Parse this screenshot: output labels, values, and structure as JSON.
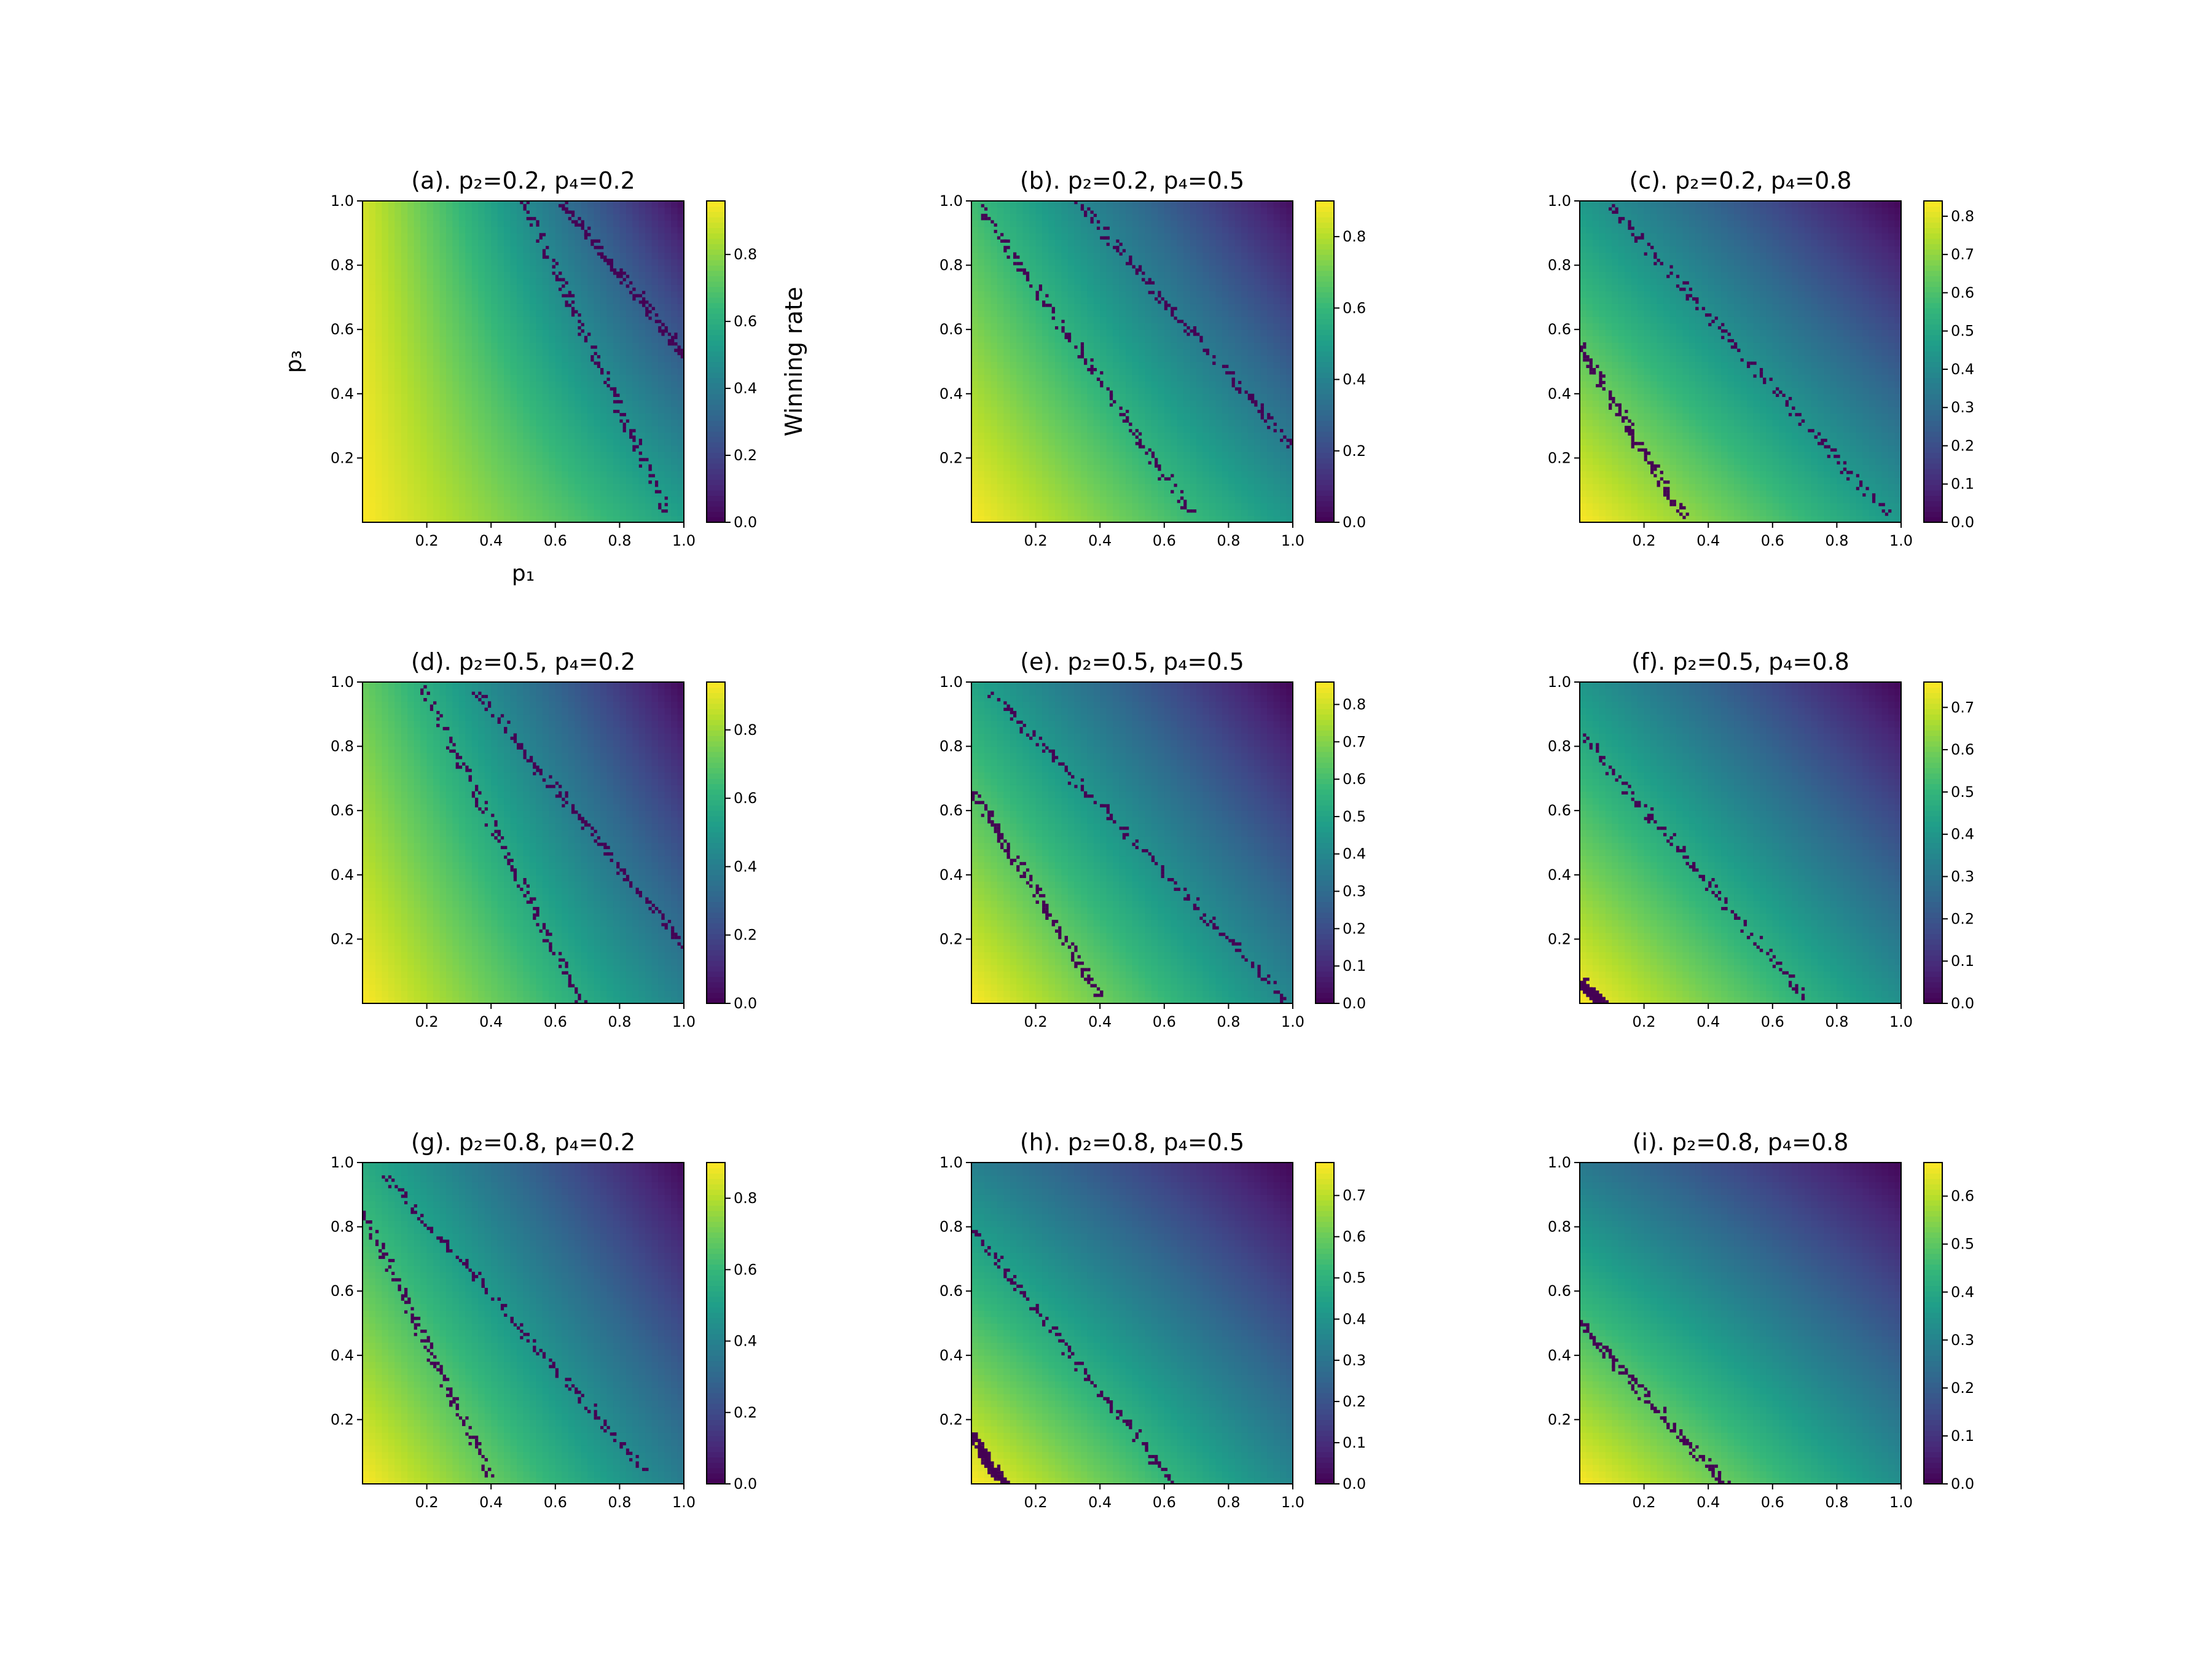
{
  "figure": {
    "colormap": "viridis",
    "colorbar_label": "Winning rate",
    "xlabel": "p₁",
    "ylabel": "p₃",
    "x_ticks": [
      "0.2",
      "0.4",
      "0.6",
      "0.8",
      "1.0"
    ],
    "y_ticks": [
      "0.2",
      "0.4",
      "0.6",
      "0.8",
      "1.0"
    ]
  },
  "chart_data": [
    {
      "type": "heatmap",
      "title": "(a). p₂=0.2, p₄=0.2",
      "p2": 0.2,
      "p4": 0.2,
      "xlim": [
        0,
        1
      ],
      "ylim": [
        0,
        1
      ],
      "xlabel": "p₁",
      "ylabel": "p₃",
      "colorbar_label": "Winning rate",
      "cbar_range": [
        0,
        0.96
      ],
      "cbar_ticks": [
        "0.0",
        "0.2",
        "0.4",
        "0.6",
        "0.8"
      ],
      "value_corners": {
        "x0y0": 0.96,
        "x1y0": 0.55,
        "x0y1": 0.9,
        "x1y1": 0.03
      },
      "boundary_lines": [
        [
          [
            0.5,
            1.0
          ],
          [
            0.95,
            0.03
          ]
        ],
        [
          [
            0.62,
            1.0
          ],
          [
            1.0,
            0.52
          ]
        ]
      ]
    },
    {
      "type": "heatmap",
      "title": "(b). p₂=0.2, p₄=0.5",
      "p2": 0.2,
      "p4": 0.5,
      "xlim": [
        0,
        1
      ],
      "ylim": [
        0,
        1
      ],
      "xlabel": "p₁",
      "ylabel": "p₃",
      "colorbar_label": "Winning rate",
      "cbar_range": [
        0,
        0.9
      ],
      "cbar_ticks": [
        "0.0",
        "0.2",
        "0.4",
        "0.6",
        "0.8"
      ],
      "value_corners": {
        "x0y0": 0.9,
        "x1y0": 0.48,
        "x0y1": 0.62,
        "x1y1": 0.03
      },
      "boundary_lines": [
        [
          [
            0.03,
            0.98
          ],
          [
            0.68,
            0.03
          ]
        ],
        [
          [
            0.33,
            1.0
          ],
          [
            1.0,
            0.23
          ]
        ]
      ]
    },
    {
      "type": "heatmap",
      "title": "(c). p₂=0.2, p₄=0.8",
      "p2": 0.2,
      "p4": 0.8,
      "xlim": [
        0,
        1
      ],
      "ylim": [
        0,
        1
      ],
      "xlabel": "p₁",
      "ylabel": "p₃",
      "colorbar_label": "Winning rate",
      "cbar_range": [
        0,
        0.84
      ],
      "cbar_ticks": [
        "0.0",
        "0.1",
        "0.2",
        "0.3",
        "0.4",
        "0.5",
        "0.6",
        "0.7",
        "0.8"
      ],
      "value_corners": {
        "x0y0": 0.84,
        "x1y0": 0.45,
        "x0y1": 0.45,
        "x1y1": 0.01
      },
      "boundary_lines": [
        [
          [
            0.0,
            0.55
          ],
          [
            0.32,
            0.02
          ]
        ],
        [
          [
            0.1,
            0.98
          ],
          [
            0.95,
            0.03
          ]
        ]
      ]
    },
    {
      "type": "heatmap",
      "title": "(d). p₂=0.5, p₄=0.2",
      "p2": 0.5,
      "p4": 0.2,
      "xlim": [
        0,
        1
      ],
      "ylim": [
        0,
        1
      ],
      "xlabel": "p₁",
      "ylabel": "p₃",
      "colorbar_label": "Winning rate",
      "cbar_range": [
        0,
        0.94
      ],
      "cbar_ticks": [
        "0.0",
        "0.2",
        "0.4",
        "0.6",
        "0.8"
      ],
      "value_corners": {
        "x0y0": 0.94,
        "x1y0": 0.42,
        "x0y1": 0.72,
        "x1y1": 0.02
      },
      "boundary_lines": [
        [
          [
            0.18,
            1.0
          ],
          [
            0.68,
            0.0
          ]
        ],
        [
          [
            0.35,
            0.97
          ],
          [
            1.0,
            0.18
          ]
        ]
      ]
    },
    {
      "type": "heatmap",
      "title": "(e). p₂=0.5, p₄=0.5",
      "p2": 0.5,
      "p4": 0.5,
      "xlim": [
        0,
        1
      ],
      "ylim": [
        0,
        1
      ],
      "xlabel": "p₁",
      "ylabel": "p₃",
      "colorbar_label": "Winning rate",
      "cbar_range": [
        0,
        0.86
      ],
      "cbar_ticks": [
        "0.0",
        "0.1",
        "0.2",
        "0.3",
        "0.4",
        "0.5",
        "0.6",
        "0.7",
        "0.8"
      ],
      "value_corners": {
        "x0y0": 0.86,
        "x1y0": 0.4,
        "x0y1": 0.5,
        "x1y1": 0.01
      },
      "boundary_lines": [
        [
          [
            0.0,
            0.67
          ],
          [
            0.4,
            0.02
          ]
        ],
        [
          [
            0.07,
            0.96
          ],
          [
            0.98,
            0.01
          ]
        ]
      ]
    },
    {
      "type": "heatmap",
      "title": "(f). p₂=0.5, p₄=0.8",
      "p2": 0.5,
      "p4": 0.8,
      "xlim": [
        0,
        1
      ],
      "ylim": [
        0,
        1
      ],
      "xlabel": "p₁",
      "ylabel": "p₃",
      "colorbar_label": "Winning rate",
      "cbar_range": [
        0,
        0.76
      ],
      "cbar_ticks": [
        "0.0",
        "0.1",
        "0.2",
        "0.3",
        "0.4",
        "0.5",
        "0.6",
        "0.7"
      ],
      "value_corners": {
        "x0y0": 0.76,
        "x1y0": 0.38,
        "x0y1": 0.4,
        "x1y1": 0.01
      },
      "boundary_lines": [
        [
          [
            0.0,
            0.07
          ],
          [
            0.07,
            0.0
          ]
        ],
        [
          [
            0.0,
            0.84
          ],
          [
            0.7,
            0.02
          ]
        ]
      ]
    },
    {
      "type": "heatmap",
      "title": "(g). p₂=0.8, p₄=0.2",
      "p2": 0.8,
      "p4": 0.2,
      "xlim": [
        0,
        1
      ],
      "ylim": [
        0,
        1
      ],
      "xlabel": "p₁",
      "ylabel": "p₃",
      "colorbar_label": "Winning rate",
      "cbar_range": [
        0,
        0.9
      ],
      "cbar_ticks": [
        "0.0",
        "0.2",
        "0.4",
        "0.6",
        "0.8"
      ],
      "value_corners": {
        "x0y0": 0.9,
        "x1y0": 0.38,
        "x0y1": 0.55,
        "x1y1": 0.02
      },
      "boundary_lines": [
        [
          [
            0.0,
            0.85
          ],
          [
            0.4,
            0.02
          ]
        ],
        [
          [
            0.07,
            0.96
          ],
          [
            0.88,
            0.04
          ]
        ]
      ]
    },
    {
      "type": "heatmap",
      "title": "(h). p₂=0.8, p₄=0.5",
      "p2": 0.8,
      "p4": 0.5,
      "xlim": [
        0,
        1
      ],
      "ylim": [
        0,
        1
      ],
      "xlabel": "p₁",
      "ylabel": "p₃",
      "colorbar_label": "Winning rate",
      "cbar_range": [
        0,
        0.78
      ],
      "cbar_ticks": [
        "0.0",
        "0.1",
        "0.2",
        "0.3",
        "0.4",
        "0.5",
        "0.6",
        "0.7"
      ],
      "value_corners": {
        "x0y0": 0.78,
        "x1y0": 0.36,
        "x0y1": 0.34,
        "x1y1": 0.01
      },
      "boundary_lines": [
        [
          [
            0.0,
            0.15
          ],
          [
            0.1,
            0.0
          ]
        ],
        [
          [
            0.0,
            0.8
          ],
          [
            0.62,
            0.01
          ]
        ]
      ]
    },
    {
      "type": "heatmap",
      "title": "(i). p₂=0.8, p₄=0.8",
      "p2": 0.8,
      "p4": 0.8,
      "xlim": [
        0,
        1
      ],
      "ylim": [
        0,
        1
      ],
      "xlabel": "p₁",
      "ylabel": "p₃",
      "colorbar_label": "Winning rate",
      "cbar_range": [
        0,
        0.67
      ],
      "cbar_ticks": [
        "0.0",
        "0.1",
        "0.2",
        "0.3",
        "0.4",
        "0.5",
        "0.6"
      ],
      "value_corners": {
        "x0y0": 0.67,
        "x1y0": 0.33,
        "x0y1": 0.27,
        "x1y1": 0.01
      },
      "boundary_lines": [
        [
          [
            0.0,
            0.5
          ],
          [
            0.45,
            0.0
          ]
        ]
      ]
    }
  ]
}
